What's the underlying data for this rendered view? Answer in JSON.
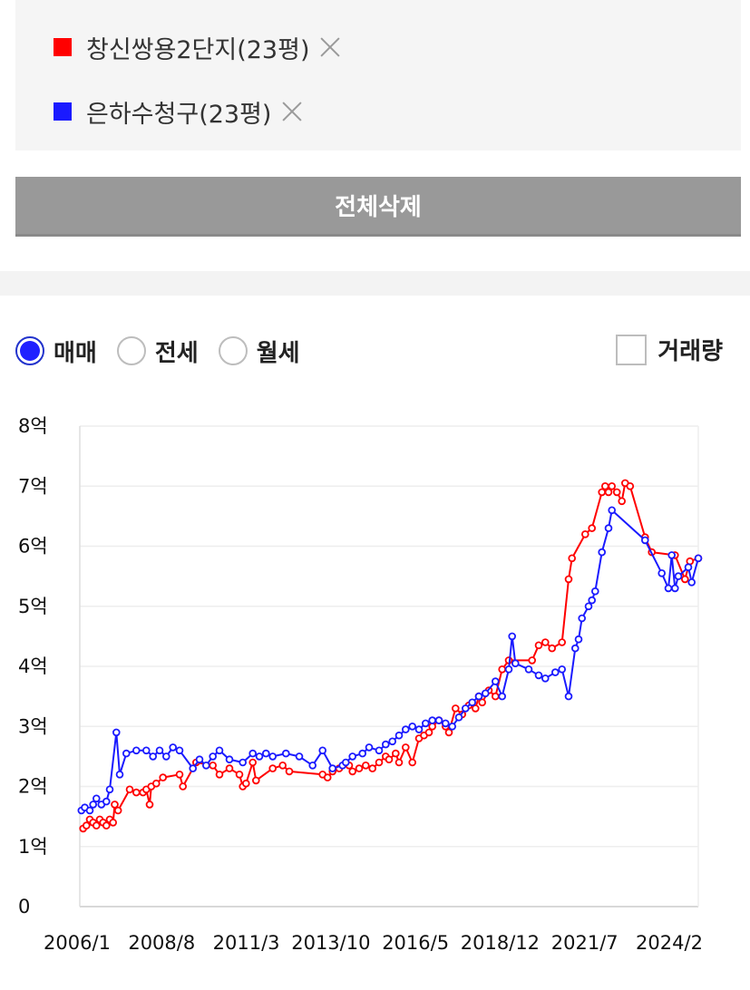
{
  "legend": {
    "items": [
      {
        "label": "창신쌍용2단지(23평)",
        "color": "#ff0000"
      },
      {
        "label": "은하수청구(23평)",
        "color": "#1a1aff"
      }
    ]
  },
  "delete_all_label": "전체삭제",
  "tabs": {
    "options": [
      {
        "label": "매매",
        "checked": true
      },
      {
        "label": "전세",
        "checked": false
      },
      {
        "label": "월세",
        "checked": false
      }
    ],
    "volume_label": "거래량",
    "volume_checked": false
  },
  "chart_data": {
    "type": "line",
    "title": "",
    "xlabel": "",
    "ylabel": "",
    "y_ticks": [
      "0",
      "1억",
      "2억",
      "3억",
      "4억",
      "5억",
      "6억",
      "7억",
      "8억"
    ],
    "x_ticks": [
      "2006/1",
      "2008/8",
      "2011/3",
      "2013/10",
      "2016/5",
      "2018/12",
      "2021/7",
      "2024/2"
    ],
    "ylim": [
      0,
      8
    ],
    "xlim": [
      2006.0,
      2024.6
    ],
    "grid": true,
    "series": [
      {
        "name": "창신쌍용2단지(23평)",
        "color": "#ff0000",
        "points": [
          [
            2006.1,
            1.3
          ],
          [
            2006.2,
            1.35
          ],
          [
            2006.3,
            1.45
          ],
          [
            2006.4,
            1.4
          ],
          [
            2006.5,
            1.35
          ],
          [
            2006.6,
            1.45
          ],
          [
            2006.7,
            1.4
          ],
          [
            2006.8,
            1.35
          ],
          [
            2006.9,
            1.45
          ],
          [
            2007.0,
            1.4
          ],
          [
            2007.05,
            1.7
          ],
          [
            2007.15,
            1.6
          ],
          [
            2007.5,
            1.95
          ],
          [
            2007.7,
            1.9
          ],
          [
            2007.9,
            1.9
          ],
          [
            2008.0,
            1.95
          ],
          [
            2008.1,
            1.7
          ],
          [
            2008.15,
            2.0
          ],
          [
            2008.3,
            2.05
          ],
          [
            2008.5,
            2.15
          ],
          [
            2009.0,
            2.2
          ],
          [
            2009.1,
            2.0
          ],
          [
            2009.5,
            2.4
          ],
          [
            2010.0,
            2.35
          ],
          [
            2010.2,
            2.2
          ],
          [
            2010.5,
            2.3
          ],
          [
            2010.8,
            2.2
          ],
          [
            2010.9,
            2.0
          ],
          [
            2011.0,
            2.05
          ],
          [
            2011.2,
            2.4
          ],
          [
            2011.3,
            2.1
          ],
          [
            2011.8,
            2.3
          ],
          [
            2012.1,
            2.35
          ],
          [
            2012.3,
            2.25
          ],
          [
            2013.3,
            2.2
          ],
          [
            2013.45,
            2.15
          ],
          [
            2013.6,
            2.25
          ],
          [
            2013.8,
            2.3
          ],
          [
            2014.1,
            2.35
          ],
          [
            2014.2,
            2.25
          ],
          [
            2014.4,
            2.3
          ],
          [
            2014.6,
            2.35
          ],
          [
            2014.8,
            2.3
          ],
          [
            2015.0,
            2.4
          ],
          [
            2015.2,
            2.5
          ],
          [
            2015.3,
            2.45
          ],
          [
            2015.5,
            2.55
          ],
          [
            2015.6,
            2.4
          ],
          [
            2015.8,
            2.65
          ],
          [
            2016.0,
            2.4
          ],
          [
            2016.2,
            2.8
          ],
          [
            2016.35,
            2.85
          ],
          [
            2016.5,
            2.9
          ],
          [
            2016.6,
            3.0
          ],
          [
            2016.8,
            3.1
          ],
          [
            2017.0,
            3.0
          ],
          [
            2017.1,
            2.9
          ],
          [
            2017.3,
            3.3
          ],
          [
            2017.5,
            3.2
          ],
          [
            2017.7,
            3.35
          ],
          [
            2017.9,
            3.3
          ],
          [
            2018.0,
            3.5
          ],
          [
            2018.1,
            3.4
          ],
          [
            2018.3,
            3.6
          ],
          [
            2018.5,
            3.5
          ],
          [
            2018.7,
            3.95
          ],
          [
            2018.9,
            4.1
          ],
          [
            2019.6,
            4.1
          ],
          [
            2019.8,
            4.35
          ],
          [
            2020.0,
            4.4
          ],
          [
            2020.2,
            4.3
          ],
          [
            2020.5,
            4.4
          ],
          [
            2020.7,
            5.45
          ],
          [
            2020.8,
            5.8
          ],
          [
            2021.2,
            6.2
          ],
          [
            2021.4,
            6.3
          ],
          [
            2021.7,
            6.9
          ],
          [
            2021.8,
            7.0
          ],
          [
            2021.9,
            6.9
          ],
          [
            2022.0,
            7.0
          ],
          [
            2022.15,
            6.9
          ],
          [
            2022.3,
            6.75
          ],
          [
            2022.4,
            7.05
          ],
          [
            2022.55,
            7.0
          ],
          [
            2023.0,
            6.15
          ],
          [
            2023.2,
            5.9
          ],
          [
            2023.9,
            5.85
          ],
          [
            2024.2,
            5.45
          ],
          [
            2024.35,
            5.75
          ],
          [
            2024.6,
            5.8
          ]
        ]
      },
      {
        "name": "은하수청구(23평)",
        "color": "#1a1aff",
        "points": [
          [
            2006.05,
            1.6
          ],
          [
            2006.15,
            1.65
          ],
          [
            2006.3,
            1.6
          ],
          [
            2006.4,
            1.7
          ],
          [
            2006.5,
            1.8
          ],
          [
            2006.65,
            1.7
          ],
          [
            2006.8,
            1.75
          ],
          [
            2006.9,
            1.95
          ],
          [
            2007.1,
            2.9
          ],
          [
            2007.2,
            2.2
          ],
          [
            2007.4,
            2.55
          ],
          [
            2007.7,
            2.6
          ],
          [
            2008.0,
            2.6
          ],
          [
            2008.2,
            2.5
          ],
          [
            2008.4,
            2.6
          ],
          [
            2008.6,
            2.5
          ],
          [
            2008.8,
            2.65
          ],
          [
            2009.0,
            2.6
          ],
          [
            2009.4,
            2.3
          ],
          [
            2009.6,
            2.45
          ],
          [
            2009.8,
            2.35
          ],
          [
            2010.0,
            2.5
          ],
          [
            2010.2,
            2.6
          ],
          [
            2010.5,
            2.45
          ],
          [
            2010.9,
            2.4
          ],
          [
            2011.2,
            2.55
          ],
          [
            2011.4,
            2.5
          ],
          [
            2011.6,
            2.55
          ],
          [
            2011.8,
            2.5
          ],
          [
            2012.2,
            2.55
          ],
          [
            2012.6,
            2.5
          ],
          [
            2013.0,
            2.35
          ],
          [
            2013.3,
            2.6
          ],
          [
            2013.6,
            2.3
          ],
          [
            2013.9,
            2.35
          ],
          [
            2014.0,
            2.4
          ],
          [
            2014.2,
            2.5
          ],
          [
            2014.5,
            2.55
          ],
          [
            2014.7,
            2.65
          ],
          [
            2015.0,
            2.6
          ],
          [
            2015.2,
            2.7
          ],
          [
            2015.4,
            2.75
          ],
          [
            2015.6,
            2.85
          ],
          [
            2015.8,
            2.95
          ],
          [
            2016.0,
            3.0
          ],
          [
            2016.2,
            2.95
          ],
          [
            2016.4,
            3.05
          ],
          [
            2016.6,
            3.1
          ],
          [
            2016.8,
            3.1
          ],
          [
            2017.0,
            3.05
          ],
          [
            2017.2,
            3.0
          ],
          [
            2017.4,
            3.15
          ],
          [
            2017.6,
            3.3
          ],
          [
            2017.8,
            3.4
          ],
          [
            2018.0,
            3.5
          ],
          [
            2018.2,
            3.55
          ],
          [
            2018.5,
            3.75
          ],
          [
            2018.7,
            3.5
          ],
          [
            2018.9,
            3.95
          ],
          [
            2019.0,
            4.5
          ],
          [
            2019.1,
            4.05
          ],
          [
            2019.5,
            3.95
          ],
          [
            2019.8,
            3.85
          ],
          [
            2020.0,
            3.8
          ],
          [
            2020.3,
            3.9
          ],
          [
            2020.5,
            3.95
          ],
          [
            2020.7,
            3.5
          ],
          [
            2020.9,
            4.3
          ],
          [
            2021.0,
            4.45
          ],
          [
            2021.1,
            4.8
          ],
          [
            2021.3,
            5.0
          ],
          [
            2021.4,
            5.1
          ],
          [
            2021.5,
            5.25
          ],
          [
            2021.7,
            5.9
          ],
          [
            2021.9,
            6.3
          ],
          [
            2022.0,
            6.6
          ],
          [
            2023.0,
            6.1
          ],
          [
            2023.5,
            5.55
          ],
          [
            2023.7,
            5.3
          ],
          [
            2023.8,
            5.85
          ],
          [
            2023.9,
            5.3
          ],
          [
            2024.0,
            5.5
          ],
          [
            2024.3,
            5.65
          ],
          [
            2024.4,
            5.4
          ],
          [
            2024.6,
            5.8
          ]
        ]
      }
    ]
  }
}
